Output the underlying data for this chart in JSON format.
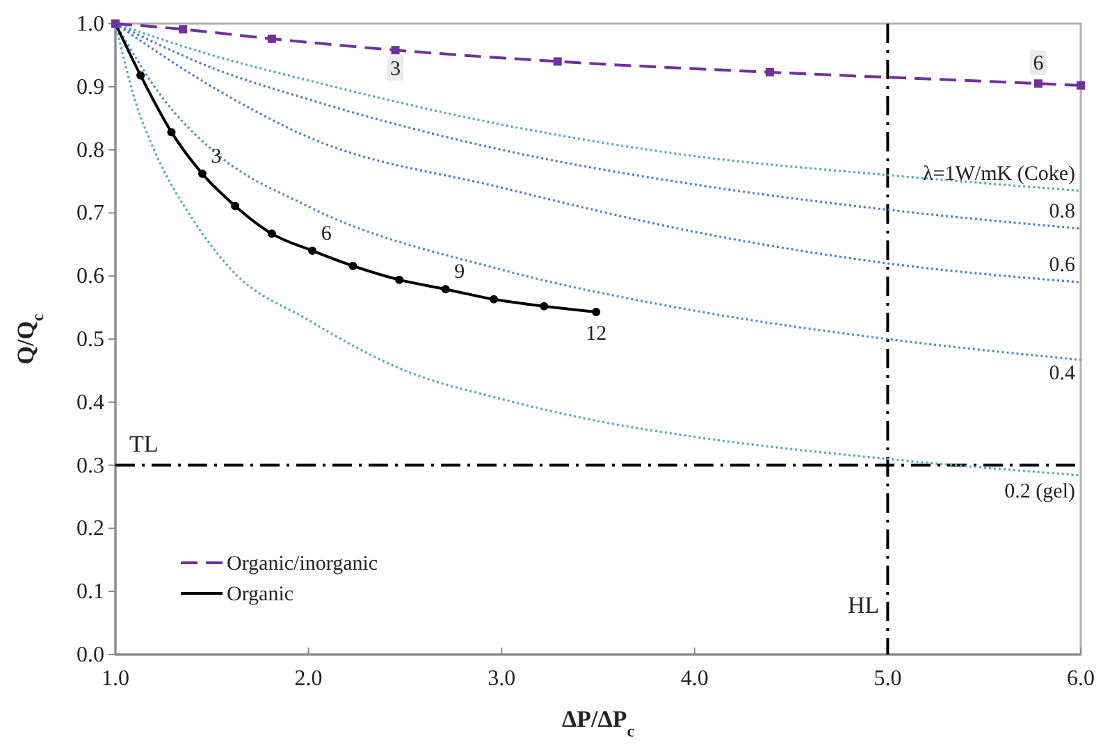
{
  "chart_data": {
    "type": "line",
    "xlabel": "ΔP/ΔP$_{c}$",
    "ylabel": "Q/Q$_{c}$",
    "xlim": [
      1,
      6
    ],
    "xticks": [
      {
        "value": 1,
        "label": "1.0"
      },
      {
        "value": 2,
        "label": "2.0"
      },
      {
        "value": 3,
        "label": "3.0"
      },
      {
        "value": 4,
        "label": "4.0"
      },
      {
        "value": 5,
        "label": "5.0"
      },
      {
        "value": 6,
        "label": "6.0"
      }
    ],
    "ylim": [
      0,
      1
    ],
    "yticks": [
      {
        "value": 0,
        "label": "0.0"
      },
      0.1,
      0.2,
      0.3,
      0.4,
      0.5,
      0.6,
      0.7,
      0.8,
      0.9,
      {
        "value": 1,
        "label": "1.0"
      }
    ],
    "grid": false,
    "legend": "bottom left",
    "series": [
      {
        "name": "Organic/inorganic",
        "color": "#7030a0",
        "marker": "square",
        "line_style": "dashed",
        "x": [
          1,
          1.35,
          1.81,
          2.45,
          3.29,
          4.39,
          5.78,
          6
        ],
        "values": [
          1,
          0.991,
          0.976,
          0.958,
          0.94,
          0.923,
          0.905,
          0.902
        ]
      },
      {
        "name": "Organic",
        "color": "#000000",
        "marker": "circle",
        "line_style": "solid",
        "x": [
          1,
          1.13,
          1.29,
          1.45,
          1.62,
          1.81,
          2.02,
          2.23,
          2.47,
          2.71,
          2.96,
          3.22,
          3.49
        ],
        "values": [
          1,
          0.918,
          0.828,
          0.762,
          0.711,
          0.667,
          0.64,
          0.616,
          0.594,
          0.579,
          0.563,
          0.552,
          0.543
        ]
      },
      {
        "name": "λ=1W/mK (Coke)",
        "color": "#4bacc6",
        "marker": "none",
        "line_style": "dotted",
        "x": [
          1,
          1.5,
          2,
          3,
          4,
          5,
          6
        ],
        "values": [
          1,
          0.95,
          0.91,
          0.84,
          0.79,
          0.76,
          0.735
        ]
      },
      {
        "name": "0.8",
        "color": "#4a7fd0",
        "marker": "none",
        "line_style": "dotted",
        "x": [
          1,
          1.5,
          2,
          3,
          4,
          5,
          6
        ],
        "values": [
          1,
          0.93,
          0.88,
          0.8,
          0.745,
          0.705,
          0.675
        ]
      },
      {
        "name": "0.6",
        "color": "#4a7fd0",
        "marker": "none",
        "line_style": "dotted",
        "x": [
          1,
          1.5,
          2,
          3,
          4,
          5,
          6
        ],
        "values": [
          1,
          0.9,
          0.82,
          0.74,
          0.67,
          0.62,
          0.59
        ]
      },
      {
        "name": "0.4",
        "color": "#4a8fd0",
        "marker": "none",
        "line_style": "dotted",
        "x": [
          1,
          1.25,
          1.5,
          2,
          3,
          4,
          5,
          6
        ],
        "values": [
          1,
          0.88,
          0.8,
          0.71,
          0.61,
          0.545,
          0.5,
          0.467
        ]
      },
      {
        "name": "0.2 (gel)",
        "color": "#4bacc6",
        "marker": "none",
        "line_style": "dotted",
        "x": [
          1,
          1.1,
          1.2,
          1.4,
          1.6,
          2,
          2.5,
          3,
          3.5,
          4,
          5,
          6
        ],
        "values": [
          1,
          0.88,
          0.8,
          0.69,
          0.61,
          0.53,
          0.45,
          0.405,
          0.37,
          0.345,
          0.31,
          0.284
        ]
      }
    ],
    "ref_lines": [
      {
        "axis": "y",
        "value": 0.3,
        "label": "TL",
        "color": "#000000"
      },
      {
        "axis": "x",
        "value": 5,
        "label": "HL",
        "color": "#000000"
      }
    ],
    "annotations": [
      {
        "text": "3",
        "x": 2.45,
        "y": 0.958
      },
      {
        "text": "6",
        "x": 5.78,
        "y": 0.905
      },
      {
        "text": "3",
        "x": 1.45,
        "y": 0.762
      },
      {
        "text": "6",
        "x": 2.02,
        "y": 0.64
      },
      {
        "text": "9",
        "x": 2.71,
        "y": 0.579
      },
      {
        "text": "12",
        "x": 3.49,
        "y": 0.543
      }
    ]
  }
}
